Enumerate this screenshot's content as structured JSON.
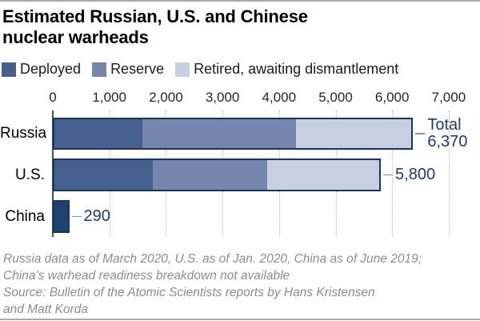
{
  "header": {
    "title": "Estimated Russian, U.S. and Chinese\nnuclear warheads"
  },
  "legend": {
    "items": [
      {
        "label": "Deployed",
        "color_key": "deployed"
      },
      {
        "label": "Reserve",
        "color_key": "reserve"
      },
      {
        "label": "Retired, awaiting dismantlement",
        "color_key": "retired"
      }
    ]
  },
  "footnote": "Russia data as of March 2020, U.S. as of Jan. 2020, China as of June 2019;\nChina’s warhead readiness breakdown not available\nSource: Bulletin of the Atomic Scientists reports by Hans Kristensen\nand Matt Korda",
  "colors": {
    "deployed": "#455f8e",
    "reserve": "#7586ae",
    "retired": "#c7cfe1",
    "china_total": "#1d4271",
    "bar_border": "#16365c",
    "total_label": "#1e3c6b",
    "connector": "#919191",
    "gridline": "#b9b9b9",
    "axis_line": "#4a4a4a",
    "footnote_text": "#8c8c8c",
    "rule": "#a9a9a9"
  },
  "chart_data": {
    "type": "bar",
    "orientation": "horizontal",
    "stacked": true,
    "title": "Estimated Russian, U.S. and Chinese nuclear warheads",
    "xlabel": "",
    "ylabel": "",
    "xlim": [
      0,
      7000
    ],
    "xtick_values": [
      0,
      1000,
      2000,
      3000,
      4000,
      5000,
      6000,
      7000
    ],
    "xtick_labels": [
      "0",
      "1,000",
      "2,000",
      "3,000",
      "4,000",
      "5,000",
      "6,000",
      "7,000"
    ],
    "grid": "vertical-dotted",
    "legend_position": "top",
    "legend_entries": [
      "Deployed",
      "Reserve",
      "Retired, awaiting dismantlement"
    ],
    "rows": [
      {
        "label": "Russia",
        "total": 6370,
        "total_label": "Total\n6,370",
        "segments": [
          {
            "name": "Deployed",
            "value": 1570,
            "color_key": "deployed"
          },
          {
            "name": "Reserve",
            "value": 2740,
            "color_key": "reserve"
          },
          {
            "name": "Retired, awaiting dismantlement",
            "value": 2060,
            "color_key": "retired"
          }
        ]
      },
      {
        "label": "U.S.",
        "total": 5800,
        "total_label": "5,800",
        "segments": [
          {
            "name": "Deployed",
            "value": 1750,
            "color_key": "deployed"
          },
          {
            "name": "Reserve",
            "value": 2050,
            "color_key": "reserve"
          },
          {
            "name": "Retired, awaiting dismantlement",
            "value": 2000,
            "color_key": "retired"
          }
        ]
      },
      {
        "label": "China",
        "total": 290,
        "total_label": "290",
        "segments": [
          {
            "name": "Total, readiness breakdown not available",
            "value": 290,
            "color_key": "china_total"
          }
        ]
      }
    ]
  }
}
